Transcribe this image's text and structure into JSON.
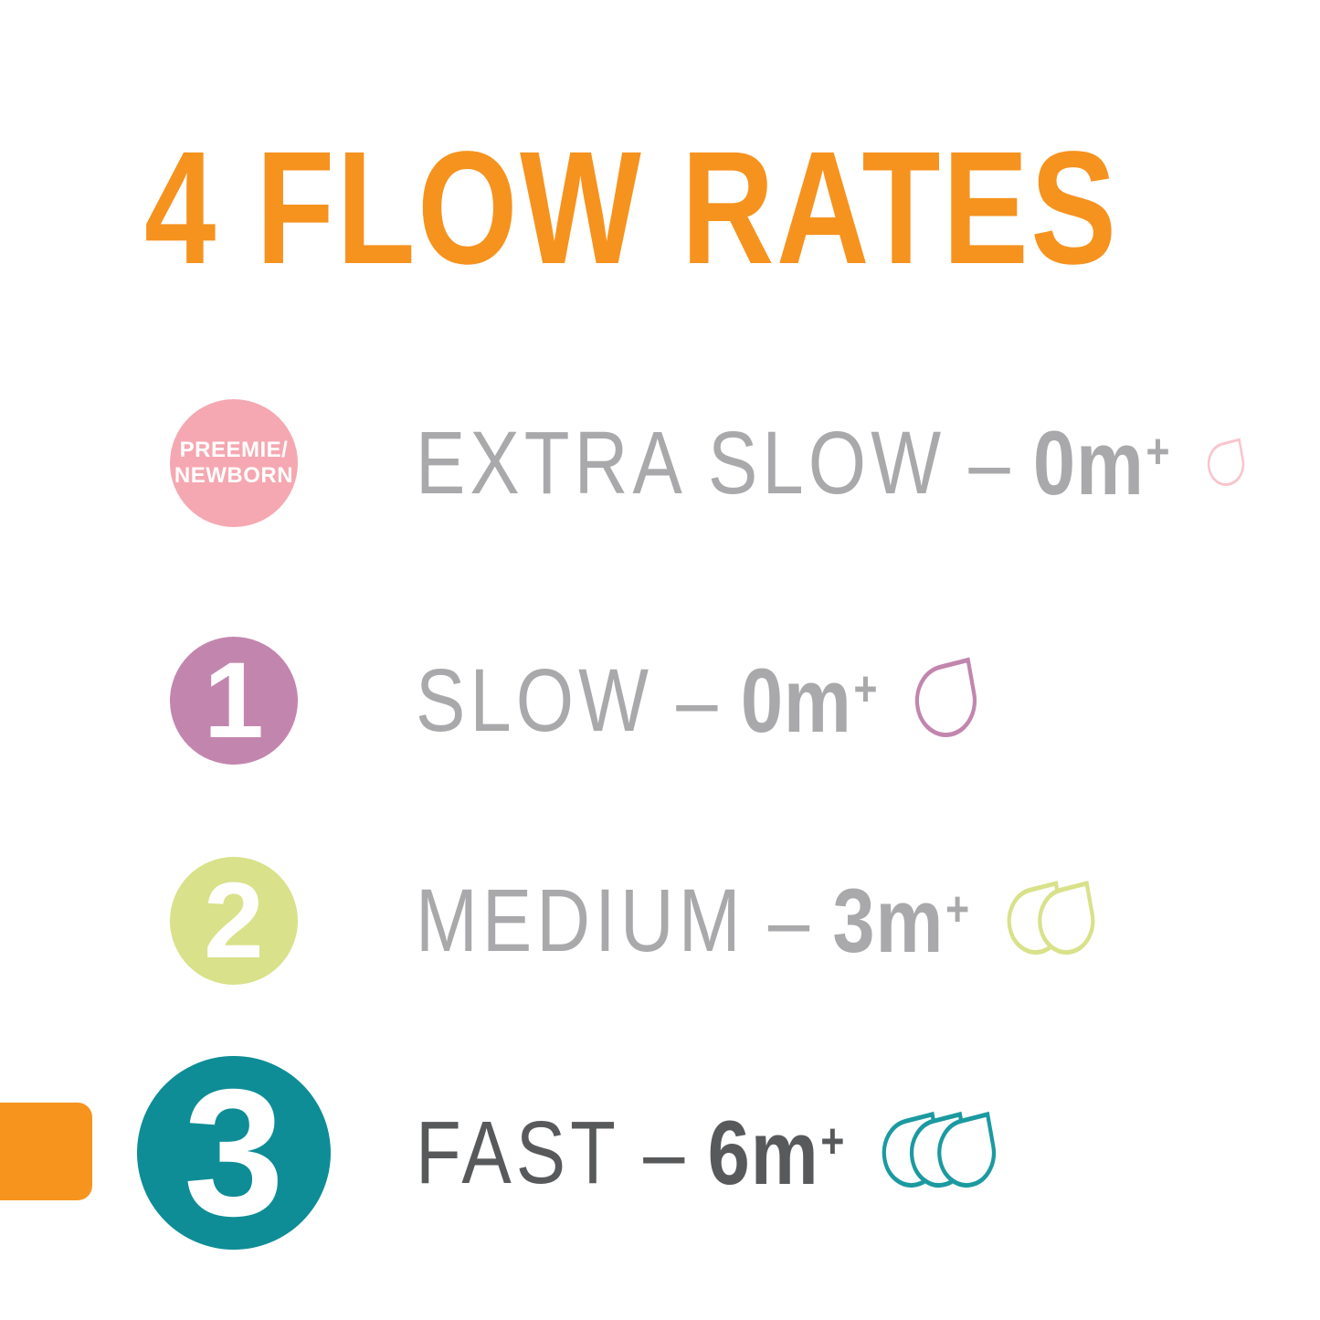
{
  "title": {
    "text": "4 FLOW RATES",
    "color": "#F6921E"
  },
  "highlight_tab": {
    "color": "#F7941E",
    "meaning": "indicates the flow rate of this product (FAST)"
  },
  "colors": {
    "label_gray": "#A9A9AB",
    "highlight_gray": "#58595B",
    "white": "#FFFFFF"
  },
  "rows": [
    {
      "badge_line1": "PREEMIE/",
      "badge_line2": "NEWBORN",
      "badge_number": "",
      "badge_color": "#F5A8B1",
      "label": "EXTRA SLOW",
      "dash": "–",
      "age_value": "0m",
      "age_plus": "+",
      "drop_count": 1,
      "drop_color": "#F9C5CC",
      "text_color": "#A9A9AB",
      "highlighted": false
    },
    {
      "badge_line1": "",
      "badge_line2": "",
      "badge_number": "1",
      "badge_color": "#C286AE",
      "label": "SLOW",
      "dash": "–",
      "age_value": "0m",
      "age_plus": "+",
      "drop_count": 1,
      "drop_color": "#C286AE",
      "text_color": "#A9A9AB",
      "highlighted": false
    },
    {
      "badge_line1": "",
      "badge_line2": "",
      "badge_number": "2",
      "badge_color": "#D9E18A",
      "label": "MEDIUM",
      "dash": "–",
      "age_value": "3m",
      "age_plus": "+",
      "drop_count": 2,
      "drop_color": "#D9E18A",
      "text_color": "#A9A9AB",
      "highlighted": false
    },
    {
      "badge_line1": "",
      "badge_line2": "",
      "badge_number": "3",
      "badge_color": "#0E8D96",
      "label": "FAST",
      "dash": "–",
      "age_value": "6m",
      "age_plus": "+",
      "drop_count": 3,
      "drop_color": "#1B9AA0",
      "text_color": "#58595B",
      "highlighted": true
    }
  ]
}
